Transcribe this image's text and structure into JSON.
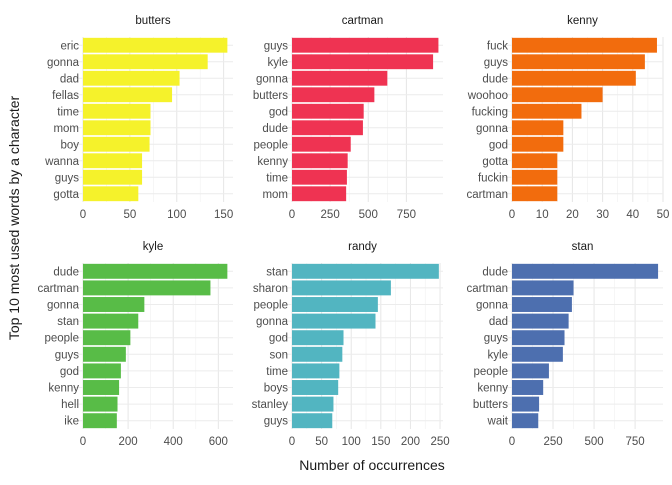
{
  "figure": {
    "ylabel": "Top 10 most used words by a character",
    "xlabel": "Number of occurrences"
  },
  "chart_data": [
    {
      "type": "bar",
      "orientation": "horizontal",
      "title": "butters",
      "color": "#f5f22b",
      "categories": [
        "eric",
        "gonna",
        "dad",
        "fellas",
        "time",
        "mom",
        "boy",
        "wanna",
        "guys",
        "gotta"
      ],
      "values": [
        154,
        133,
        103,
        95,
        72,
        72,
        71,
        63,
        63,
        59
      ],
      "xlim": [
        0,
        160
      ],
      "xticks": [
        0,
        50,
        100,
        150
      ],
      "grid": true
    },
    {
      "type": "bar",
      "orientation": "horizontal",
      "title": "cartman",
      "color": "#ef3352",
      "categories": [
        "guys",
        "kyle",
        "gonna",
        "butters",
        "god",
        "dude",
        "people",
        "kenny",
        "time",
        "mom"
      ],
      "values": [
        960,
        925,
        625,
        540,
        470,
        465,
        385,
        365,
        360,
        355
      ],
      "xlim": [
        0,
        990
      ],
      "xticks": [
        0,
        250,
        500,
        750
      ],
      "grid": true
    },
    {
      "type": "bar",
      "orientation": "horizontal",
      "title": "kenny",
      "color": "#f26c0d",
      "categories": [
        "fuck",
        "guys",
        "dude",
        "woohoo",
        "fucking",
        "gonna",
        "god",
        "gotta",
        "fuckin",
        "cartman"
      ],
      "values": [
        48,
        44,
        41,
        30,
        23,
        17,
        17,
        15,
        15,
        15
      ],
      "xlim": [
        0,
        50
      ],
      "xticks": [
        0,
        10,
        20,
        30,
        40,
        50
      ],
      "grid": true
    },
    {
      "type": "bar",
      "orientation": "horizontal",
      "title": "kyle",
      "color": "#58bc47",
      "categories": [
        "dude",
        "cartman",
        "gonna",
        "stan",
        "people",
        "guys",
        "god",
        "kenny",
        "hell",
        "ike"
      ],
      "values": [
        640,
        565,
        272,
        245,
        210,
        190,
        168,
        160,
        153,
        150
      ],
      "xlim": [
        0,
        665
      ],
      "xticks": [
        0,
        200,
        400,
        600
      ],
      "grid": true
    },
    {
      "type": "bar",
      "orientation": "horizontal",
      "title": "randy",
      "color": "#52b5c1",
      "categories": [
        "stan",
        "sharon",
        "people",
        "gonna",
        "god",
        "son",
        "time",
        "boys",
        "stanley",
        "guys"
      ],
      "values": [
        248,
        167,
        145,
        141,
        87,
        85,
        80,
        78,
        70,
        68
      ],
      "xlim": [
        0,
        255
      ],
      "xticks": [
        0,
        50,
        100,
        150,
        200,
        250
      ],
      "grid": true
    },
    {
      "type": "bar",
      "orientation": "horizontal",
      "title": "stan",
      "color": "#4d6faf",
      "categories": [
        "dude",
        "cartman",
        "gonna",
        "dad",
        "guys",
        "kyle",
        "people",
        "kenny",
        "butters",
        "wait"
      ],
      "values": [
        890,
        375,
        365,
        345,
        320,
        310,
        225,
        190,
        165,
        160
      ],
      "xlim": [
        0,
        920
      ],
      "xticks": [
        0,
        250,
        500,
        750
      ],
      "grid": true
    }
  ]
}
